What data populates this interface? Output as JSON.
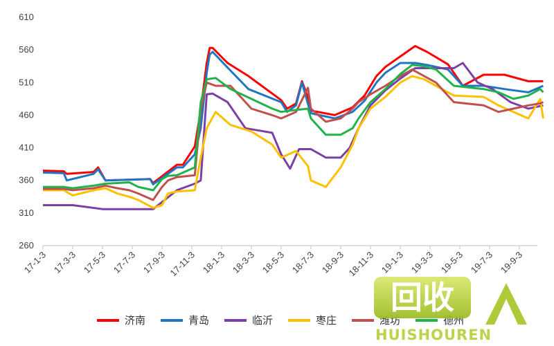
{
  "chart_data": {
    "type": "line",
    "title": "",
    "xlabel": "",
    "ylabel": "",
    "ylim": [
      260,
      610
    ],
    "yticks": [
      260,
      310,
      360,
      410,
      460,
      510,
      560,
      610
    ],
    "x_tick_labels": [
      "17-1-3",
      "17-3-3",
      "17-5-3",
      "17-7-3",
      "17-9-3",
      "17-11-3",
      "18-1-3",
      "18-3-3",
      "18-5-3",
      "18-7-3",
      "18-9-3",
      "18-11-3",
      "19-1-3",
      "19-3-3",
      "19-5-3",
      "19-7-3",
      "19-9-3"
    ],
    "legend_position": "bottom",
    "grid": false,
    "series": [
      {
        "name": "济南",
        "color": "#ff0000",
        "x": [
          0,
          0.7,
          0.8,
          1.7,
          1.85,
          2.1,
          3.6,
          3.7,
          4.5,
          4.7,
          5.1,
          5.3,
          5.5,
          5.6,
          5.7,
          6.2,
          6.9,
          8.0,
          8.2,
          8.5,
          8.7,
          8.9,
          9.0,
          9.8,
          10.4,
          10.8,
          11.2,
          11.5,
          12.0,
          12.5,
          12.9,
          13.6,
          14.1,
          14.8,
          15.5,
          16.3,
          16.8
        ],
        "y": [
          375,
          374,
          370,
          373,
          380,
          360,
          362,
          356,
          384,
          384,
          412,
          468,
          540,
          563,
          563,
          540,
          520,
          483,
          470,
          478,
          512,
          487,
          467,
          460,
          472,
          490,
          520,
          534,
          550,
          566,
          557,
          538,
          505,
          522,
          522,
          512,
          512
        ]
      },
      {
        "name": "青岛",
        "color": "#1f77c4",
        "x": [
          0,
          0.7,
          0.8,
          1.7,
          1.85,
          2.1,
          3.6,
          3.7,
          4.5,
          4.7,
          5.1,
          5.3,
          5.5,
          5.6,
          5.7,
          6.2,
          6.9,
          8.0,
          8.2,
          8.5,
          8.7,
          8.9,
          9.0,
          9.8,
          10.4,
          10.8,
          11.2,
          11.5,
          12.0,
          12.5,
          12.9,
          13.6,
          14.1,
          14.8,
          15.5,
          16.3,
          16.8
        ],
        "y": [
          372,
          371,
          360,
          370,
          377,
          360,
          362,
          354,
          380,
          380,
          400,
          440,
          525,
          553,
          557,
          533,
          500,
          480,
          465,
          475,
          510,
          477,
          463,
          455,
          465,
          482,
          510,
          525,
          540,
          540,
          537,
          530,
          505,
          505,
          500,
          495,
          505
        ]
      },
      {
        "name": "临沂",
        "color": "#7b3fa8",
        "x": [
          0,
          1.0,
          2.0,
          3.0,
          3.7,
          4.5,
          5.1,
          5.3,
          5.5,
          5.7,
          6.2,
          6.8,
          7.7,
          8.0,
          8.3,
          8.6,
          9.0,
          9.5,
          10.0,
          10.3,
          10.6,
          11.0,
          11.5,
          12.0,
          12.5,
          13.2,
          13.8,
          14.1,
          14.6,
          15.1,
          15.7,
          16.3,
          16.8
        ],
        "y": [
          322,
          322,
          316,
          316,
          316,
          345,
          355,
          360,
          492,
          493,
          480,
          440,
          433,
          400,
          378,
          408,
          408,
          395,
          395,
          410,
          440,
          475,
          498,
          516,
          532,
          532,
          532,
          540,
          510,
          500,
          480,
          470,
          475
        ]
      },
      {
        "name": "枣庄",
        "color": "#ffc000",
        "x": [
          0,
          0.7,
          1.0,
          1.7,
          2.1,
          2.5,
          2.9,
          3.2,
          3.7,
          4.0,
          4.2,
          4.5,
          5.1,
          5.3,
          5.5,
          5.8,
          6.3,
          7.0,
          7.7,
          8.0,
          8.5,
          8.9,
          9.0,
          9.5,
          10.0,
          10.4,
          10.6,
          11.0,
          11.5,
          12.0,
          12.4,
          12.8,
          13.2,
          13.8,
          14.8,
          15.3,
          15.8,
          16.3,
          16.7,
          16.8
        ],
        "y": [
          345,
          345,
          337,
          345,
          348,
          340,
          335,
          330,
          318,
          322,
          340,
          343,
          345,
          395,
          440,
          465,
          445,
          435,
          415,
          395,
          405,
          382,
          360,
          350,
          380,
          415,
          440,
          470,
          488,
          510,
          520,
          515,
          505,
          490,
          488,
          475,
          465,
          455,
          485,
          455
        ]
      },
      {
        "name": "潍坊",
        "color": "#c0504d",
        "x": [
          0,
          0.7,
          1.0,
          1.7,
          2.1,
          2.5,
          2.9,
          3.2,
          3.7,
          4.0,
          4.2,
          4.5,
          5.1,
          5.3,
          5.5,
          5.8,
          6.3,
          7.0,
          7.7,
          8.0,
          8.5,
          8.9,
          9.0,
          9.5,
          10.0,
          10.4,
          10.6,
          11.0,
          11.5,
          12.0,
          12.4,
          12.8,
          13.2,
          13.8,
          14.8,
          15.3,
          15.8,
          16.3,
          16.7,
          16.8
        ],
        "y": [
          347,
          347,
          345,
          348,
          352,
          348,
          345,
          340,
          330,
          350,
          360,
          365,
          368,
          468,
          510,
          505,
          505,
          470,
          460,
          455,
          465,
          502,
          470,
          450,
          455,
          470,
          480,
          492,
          505,
          520,
          530,
          520,
          510,
          480,
          475,
          465,
          470,
          475,
          478,
          480
        ]
      },
      {
        "name": "德州",
        "color": "#1fb34a",
        "x": [
          0,
          0.7,
          1.0,
          1.7,
          2.1,
          2.5,
          2.9,
          3.2,
          3.7,
          4.0,
          4.2,
          4.5,
          5.1,
          5.3,
          5.5,
          5.8,
          6.3,
          7.0,
          7.7,
          8.0,
          8.5,
          8.9,
          9.0,
          9.5,
          10.0,
          10.4,
          10.6,
          11.0,
          11.5,
          12.0,
          12.4,
          12.8,
          13.2,
          13.8,
          14.8,
          15.3,
          15.8,
          16.3,
          16.7,
          16.8
        ],
        "y": [
          350,
          350,
          348,
          352,
          355,
          356,
          357,
          350,
          345,
          362,
          367,
          368,
          380,
          480,
          515,
          517,
          500,
          485,
          470,
          465,
          468,
          470,
          455,
          430,
          430,
          440,
          455,
          480,
          500,
          523,
          537,
          535,
          530,
          505,
          500,
          495,
          485,
          490,
          500,
          495
        ]
      }
    ]
  }
}
